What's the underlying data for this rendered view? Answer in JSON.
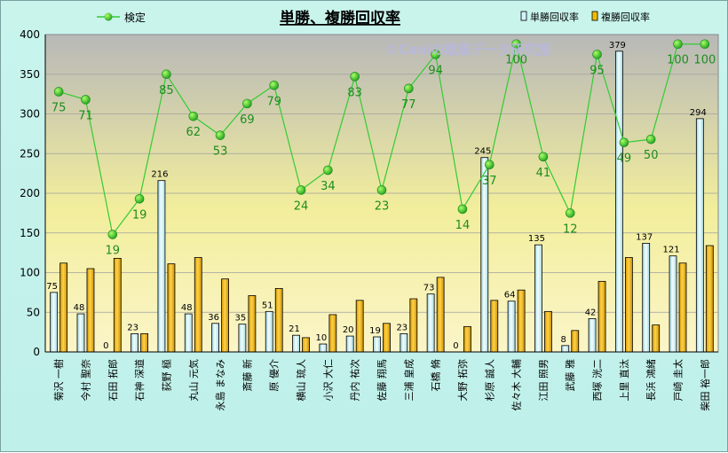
{
  "chart_data": {
    "type": "bar",
    "title": "単勝、複勝回収率",
    "watermark": "©Caniの競馬データ研究室",
    "ylim": [
      0,
      400
    ],
    "yticks": [
      0,
      50,
      100,
      150,
      200,
      250,
      300,
      350,
      400
    ],
    "grid": true,
    "legend_position": "top",
    "categories": [
      "菊沢 一樹",
      "今村 聖奈",
      "石田 拓郎",
      "石神 深道",
      "荻野 極",
      "丸山 元気",
      "永島 まなみ",
      "斎藤 新",
      "原 優介",
      "横山 琉人",
      "小沢 大仁",
      "丹内 祐次",
      "佐藤 翔馬",
      "三浦 皇成",
      "石橋 脩",
      "大野 拓弥",
      "杉原 誠人",
      "佐々木 大輔",
      "江田 照男",
      "武藤 雅",
      "西塚 洸二",
      "上里 直汰",
      "長浜 鴻緒",
      "戸崎 圭太",
      "柴田 裕一郎"
    ],
    "series": [
      {
        "name": "単勝回収率",
        "type": "bar",
        "color": "#d2f4fa",
        "values": [
          75,
          48,
          0,
          23,
          216,
          48,
          36,
          35,
          51,
          21,
          10,
          20,
          19,
          23,
          73,
          0,
          245,
          64,
          135,
          8,
          42,
          379,
          137,
          121,
          294
        ],
        "labels": [
          "75",
          "48",
          "0",
          "23",
          "216",
          "48",
          "36",
          "35",
          "51",
          "21",
          "10",
          "20",
          "19",
          "23",
          "73",
          "0",
          "245",
          "64",
          "135",
          "8",
          "42",
          "379",
          "137",
          "121",
          "294"
        ]
      },
      {
        "name": "複勝回収率",
        "type": "bar",
        "color": "#f0be00",
        "values": [
          112,
          105,
          118,
          23,
          111,
          119,
          92,
          71,
          80,
          18,
          47,
          65,
          36,
          67,
          94,
          32,
          65,
          78,
          51,
          27,
          89,
          119,
          34,
          112,
          134
        ]
      },
      {
        "name": "検定",
        "type": "line",
        "color": "#33cc33",
        "values": [
          328,
          318,
          148,
          193,
          350,
          297,
          273,
          313,
          336,
          204,
          229,
          347,
          204,
          332,
          375,
          180,
          236,
          388,
          246,
          175,
          375,
          264,
          268,
          388,
          388
        ],
        "labels": [
          "75",
          "71",
          "19",
          "19",
          "85",
          "62",
          "53",
          "69",
          "79",
          "24",
          "34",
          "83",
          "23",
          "77",
          "94",
          "14",
          "37",
          "100",
          "41",
          "12",
          "95",
          "49",
          "50",
          "100",
          "100"
        ]
      }
    ]
  }
}
